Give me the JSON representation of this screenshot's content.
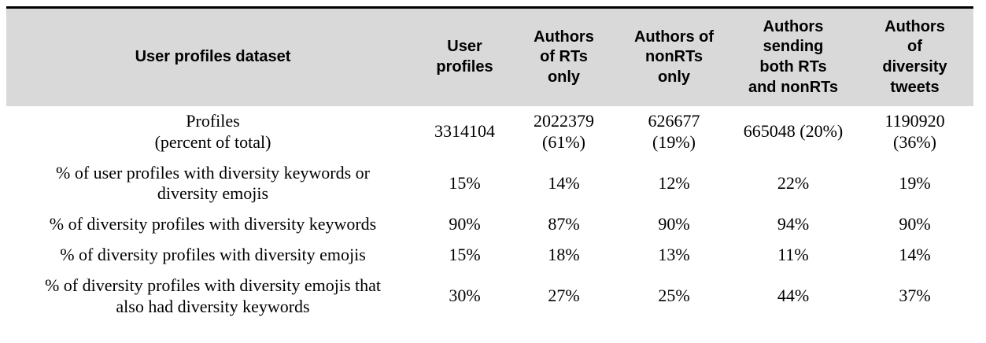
{
  "table": {
    "header": [
      "User profiles dataset",
      "User\nprofiles",
      "Authors\nof RTs\nonly",
      "Authors of\nnonRTs\nonly",
      "Authors\nsending\nboth RTs\nand nonRTs",
      "Authors\nof\ndiversity\ntweets"
    ],
    "rows": [
      {
        "label": "Profiles\n(percent of total)",
        "values": [
          "3314104",
          "2022379\n(61%)",
          "626677\n(19%)",
          "665048 (20%)",
          "1190920\n(36%)"
        ]
      },
      {
        "label": "% of user profiles with diversity keywords or\ndiversity emojis",
        "values": [
          "15%",
          "14%",
          "12%",
          "22%",
          "19%"
        ]
      },
      {
        "label": "% of diversity profiles with diversity keywords",
        "values": [
          "90%",
          "87%",
          "90%",
          "94%",
          "90%"
        ]
      },
      {
        "label": "% of diversity profiles with diversity emojis",
        "values": [
          "15%",
          "18%",
          "13%",
          "11%",
          "14%"
        ]
      },
      {
        "label": "% of diversity profiles with diversity emojis that\nalso had diversity keywords",
        "values": [
          "30%",
          "27%",
          "25%",
          "44%",
          "37%"
        ]
      }
    ]
  },
  "colors": {
    "header_background": "#d9d9d9",
    "top_border": "#000000",
    "text": "#000000"
  },
  "chart_data": {
    "type": "table",
    "title": "User profiles dataset",
    "columns": [
      "User profiles dataset",
      "User profiles",
      "Authors of RTs only",
      "Authors of nonRTs only",
      "Authors sending both RTs and nonRTs",
      "Authors of diversity tweets"
    ],
    "rows": [
      [
        "Profiles (percent of total)",
        "3314104",
        "2022379 (61%)",
        "626677 (19%)",
        "665048 (20%)",
        "1190920 (36%)"
      ],
      [
        "% of user profiles with diversity keywords or diversity emojis",
        "15%",
        "14%",
        "12%",
        "22%",
        "19%"
      ],
      [
        "% of diversity profiles with diversity keywords",
        "90%",
        "87%",
        "90%",
        "94%",
        "90%"
      ],
      [
        "% of diversity profiles with diversity emojis",
        "15%",
        "18%",
        "13%",
        "11%",
        "14%"
      ],
      [
        "% of diversity profiles with diversity emojis that also had diversity keywords",
        "30%",
        "27%",
        "25%",
        "44%",
        "37%"
      ]
    ]
  }
}
